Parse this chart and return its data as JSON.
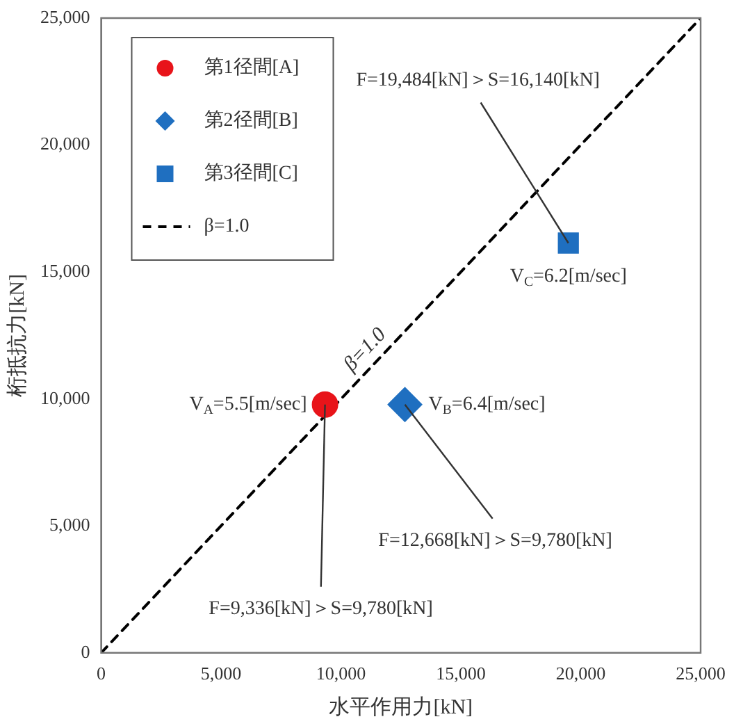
{
  "chart_data": {
    "type": "scatter",
    "xlabel": "水平作用力[kN]",
    "ylabel": "桁抵抗力[kN]",
    "xlim": [
      0,
      25000
    ],
    "ylim": [
      0,
      25000
    ],
    "xticks": [
      0,
      {
        "value": 5000,
        "label": "5,000"
      },
      {
        "value": 10000,
        "label": "10,000"
      },
      {
        "value": 15000,
        "label": "15,000"
      },
      {
        "value": 20000,
        "label": "20,000"
      },
      {
        "value": 25000,
        "label": "25,000"
      }
    ],
    "yticks": [
      0,
      {
        "value": 5000,
        "label": "5,000"
      },
      {
        "value": 10000,
        "label": "10,000"
      },
      {
        "value": 15000,
        "label": "15,000"
      },
      {
        "value": 20000,
        "label": "20,000"
      },
      {
        "value": 25000,
        "label": "25,000"
      }
    ],
    "grid": false,
    "legend": "top left",
    "series": [
      {
        "name": "第1径間[A]",
        "marker": "circle",
        "color": "#e8141a",
        "x": [
          9336
        ],
        "values": [
          9780
        ]
      },
      {
        "name": "第2径間[B]",
        "marker": "diamond",
        "color": "#1f6fc0",
        "x": [
          12668
        ],
        "values": [
          9780
        ]
      },
      {
        "name": "第3径間[C]",
        "marker": "square",
        "color": "#1f6fc0",
        "x": [
          19484
        ],
        "values": [
          16140
        ]
      },
      {
        "name": "β=1.0",
        "type": "line",
        "marker": "none",
        "line_style": "dashed",
        "color": "#000000",
        "x": [
          0,
          25000
        ],
        "values": [
          0,
          25000
        ]
      }
    ],
    "annotations": [
      {
        "text": "V$_{A}$=5.5[m/sec]",
        "x": 9336,
        "y": 9780
      },
      {
        "text": "V$_{B}$=6.4[m/sec]",
        "x": 12668,
        "y": 9780
      },
      {
        "text": "V$_{C}$=6.2[m/sec]",
        "x": 19484,
        "y": 16140
      },
      {
        "text": "F=9,336[kN]＞S=9,780[kN]",
        "x": 9336,
        "y": 9780
      },
      {
        "text": "F=12,668[kN]＞S=9,780[kN]",
        "x": 12668,
        "y": 9780
      },
      {
        "text": "F=19,484[kN]＞S=16,140[kN]",
        "x": 19484,
        "y": 16140
      },
      {
        "text": "β=1.0",
        "x": 11500,
        "y": 11500
      }
    ]
  }
}
